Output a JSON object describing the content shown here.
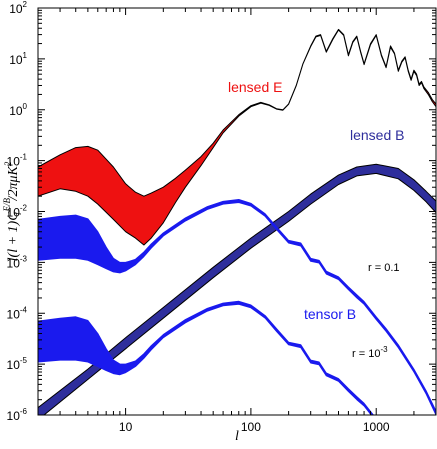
{
  "chart_data": {
    "type": "line",
    "title": "",
    "xlabel": "l",
    "ylabel": "l(l + 1)C_l^{E/B}/2πμK²",
    "ylabel_parts": {
      "pre": "l(l + 1)C",
      "sub": "l",
      "sup": "E/B",
      "post": "/2πμK",
      "post_sup": "2"
    },
    "x_scale": "log",
    "y_scale": "log",
    "xlim": [
      2,
      3000
    ],
    "ylim": [
      1e-06,
      100
    ],
    "x_ticks": [
      10,
      100,
      1000
    ],
    "x_tick_labels": [
      "10",
      "100",
      "1000"
    ],
    "y_ticks": [
      1e-06,
      1e-05,
      0.0001,
      0.001,
      0.01,
      0.1,
      1,
      10,
      100
    ],
    "y_tick_labels": [
      {
        "base": "10",
        "exp": "-6"
      },
      {
        "base": "10",
        "exp": "-5"
      },
      {
        "base": "10",
        "exp": "-4"
      },
      {
        "base": "10",
        "exp": "-3"
      },
      {
        "base": "10",
        "exp": "-2"
      },
      {
        "base": "10",
        "exp": "-1"
      },
      {
        "base": "10",
        "exp": "0"
      },
      {
        "base": "10",
        "exp": "1"
      },
      {
        "base": "10",
        "exp": "2"
      }
    ],
    "colors": {
      "lensed_E": "#ee1111",
      "lensed_B": "#2e2e9c",
      "tensor_B": "#1a1aee",
      "outline": "#000000"
    },
    "annotations": {
      "lensed_E": "lensed E",
      "lensed_B": "lensed B",
      "tensor_B": "tensor B",
      "r_high": "r = 0.1",
      "r_low_pre": "r = 10",
      "r_low_exp": "-3"
    },
    "series": [
      {
        "name": "lensed E",
        "x": [
          2,
          3,
          4,
          5,
          6,
          8,
          10,
          12,
          14,
          16,
          20,
          25,
          30,
          40,
          50,
          60,
          80,
          100,
          120,
          140,
          160,
          180,
          200,
          230,
          260,
          300,
          330,
          360,
          400,
          450,
          500,
          550,
          600,
          650,
          700,
          750,
          800,
          900,
          1000,
          1100,
          1200,
          1300,
          1400,
          1500,
          1600,
          1700,
          1800,
          1900,
          2000,
          2100,
          2200,
          2300,
          2400,
          2600,
          2800,
          3000
        ],
        "upper": [
          0.075,
          0.13,
          0.18,
          0.19,
          0.16,
          0.075,
          0.035,
          0.024,
          0.02,
          0.023,
          0.03,
          0.045,
          0.065,
          0.12,
          0.22,
          0.4,
          0.8,
          1.2,
          1.4,
          1.25,
          1.05,
          1.0,
          1.3,
          3.0,
          8.0,
          18,
          28,
          30,
          14,
          25,
          38,
          30,
          12,
          22,
          28,
          14,
          8,
          20,
          30,
          12,
          7,
          18,
          13,
          6,
          9,
          11,
          6,
          4,
          6,
          5,
          3.2,
          3.6,
          2.8,
          2.2,
          1.6,
          1.3
        ],
        "lower": [
          0.02,
          0.028,
          0.025,
          0.02,
          0.014,
          0.007,
          0.004,
          0.003,
          0.0022,
          0.003,
          0.006,
          0.015,
          0.03,
          0.08,
          0.18,
          0.35,
          0.75,
          1.15,
          1.35,
          1.22,
          1.03,
          0.98,
          1.28,
          2.95,
          7.9,
          17.5,
          27,
          29,
          13.5,
          24,
          37,
          29,
          11.5,
          21,
          27,
          13.5,
          7.7,
          19,
          29,
          11.5,
          6.7,
          17,
          12.5,
          5.7,
          8.6,
          10.5,
          5.7,
          3.8,
          5.7,
          4.7,
          3.0,
          3.4,
          2.6,
          2.0,
          1.45,
          1.15
        ]
      },
      {
        "name": "lensed B",
        "x": [
          2,
          5,
          10,
          20,
          50,
          100,
          200,
          300,
          500,
          700,
          1000,
          1500,
          2000,
          2500,
          3000
        ],
        "upper": [
          1.4e-06,
          8e-06,
          3.3e-05,
          0.00013,
          0.0008,
          0.003,
          0.01,
          0.022,
          0.052,
          0.075,
          0.085,
          0.07,
          0.042,
          0.025,
          0.016
        ],
        "lower": [
          8e-07,
          5e-06,
          2e-05,
          8e-05,
          0.0005,
          0.0019,
          0.0064,
          0.014,
          0.034,
          0.05,
          0.056,
          0.044,
          0.026,
          0.0155,
          0.0095
        ]
      },
      {
        "name": "tensor B (r = 0.1)",
        "x": [
          2,
          3,
          4,
          5,
          6,
          7,
          8,
          9,
          10,
          12,
          14,
          16,
          20,
          30,
          45,
          60,
          80,
          100,
          130,
          160,
          200,
          250,
          300,
          350,
          400,
          500,
          600,
          700,
          800,
          1000,
          1200,
          1500,
          2000,
          2500,
          3000
        ],
        "upper": [
          0.007,
          0.008,
          0.0085,
          0.0072,
          0.004,
          0.002,
          0.0012,
          0.001,
          0.001,
          0.00115,
          0.0016,
          0.0023,
          0.0038,
          0.0075,
          0.0125,
          0.0158,
          0.0172,
          0.0145,
          0.009,
          0.005,
          0.0027,
          0.0024,
          0.0012,
          0.0011,
          0.00067,
          0.00052,
          0.00033,
          0.00023,
          0.00017,
          8.5e-05,
          5e-05,
          2.4e-05,
          8e-06,
          3e-06,
          1.2e-06
        ],
        "lower": [
          0.0011,
          0.0012,
          0.0012,
          0.0011,
          0.0009,
          0.00075,
          0.00065,
          0.00062,
          0.00068,
          0.0009,
          0.0013,
          0.0019,
          0.0033,
          0.0065,
          0.011,
          0.014,
          0.015,
          0.0128,
          0.008,
          0.0044,
          0.0024,
          0.0021,
          0.00105,
          0.00097,
          0.00059,
          0.00046,
          0.00029,
          0.0002,
          0.00015,
          7.5e-05,
          4.4e-05,
          2.1e-05,
          7e-06,
          2.6e-06,
          1e-06
        ]
      },
      {
        "name": "tensor B (r = 10^-3)",
        "x": [
          2,
          3,
          4,
          5,
          6,
          7,
          8,
          9,
          10,
          12,
          14,
          16,
          20,
          30,
          45,
          60,
          80,
          100,
          130,
          160,
          200,
          250,
          300,
          350,
          400,
          500,
          600,
          700,
          800,
          1000
        ],
        "upper": [
          7e-05,
          8e-05,
          8.5e-05,
          7.2e-05,
          4e-05,
          2e-05,
          1.2e-05,
          1e-05,
          1e-05,
          1.15e-05,
          1.6e-05,
          2.3e-05,
          3.8e-05,
          7.5e-05,
          0.000125,
          0.000158,
          0.000172,
          0.000145,
          9e-05,
          5e-05,
          2.7e-05,
          2.4e-05,
          1.2e-05,
          1.1e-05,
          6.7e-06,
          5.2e-06,
          3.3e-06,
          2.3e-06,
          1.7e-06,
          8.5e-07
        ],
        "lower": [
          1.1e-05,
          1.2e-05,
          1.2e-05,
          1.1e-05,
          9e-06,
          7.5e-06,
          6.5e-06,
          6.2e-06,
          6.8e-06,
          9e-06,
          1.3e-05,
          1.9e-05,
          3.3e-05,
          6.5e-05,
          0.00011,
          0.00014,
          0.00015,
          0.000128,
          8e-05,
          4.4e-05,
          2.4e-05,
          2.1e-05,
          1.05e-05,
          9.7e-06,
          5.9e-06,
          4.6e-06,
          2.9e-06,
          2e-06,
          1.5e-06,
          7.5e-07
        ]
      }
    ]
  }
}
